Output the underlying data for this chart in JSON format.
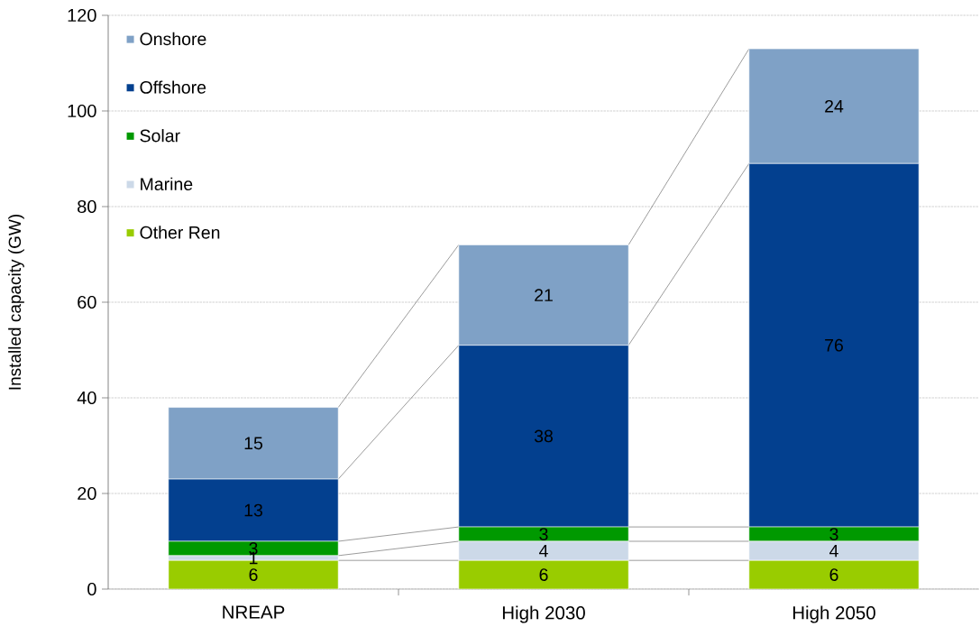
{
  "chart_data": {
    "type": "bar",
    "stacked": true,
    "ylabel": "Installed capacity (GW)",
    "categories": [
      "NREAP",
      "High 2030",
      "High 2050"
    ],
    "series": [
      {
        "name": "Other Ren",
        "color": "#99cc00",
        "values": [
          6,
          6,
          6
        ]
      },
      {
        "name": "Marine",
        "color": "#ccd9e8",
        "values": [
          1,
          4,
          4
        ]
      },
      {
        "name": "Solar",
        "color": "#009900",
        "values": [
          3,
          3,
          3
        ]
      },
      {
        "name": "Offshore",
        "color": "#03408f",
        "values": [
          13,
          38,
          76
        ]
      },
      {
        "name": "Onshore",
        "color": "#7fa1c6",
        "values": [
          15,
          21,
          24
        ]
      }
    ],
    "ylim": [
      0,
      120
    ],
    "yticks": [
      0,
      20,
      40,
      60,
      80,
      100,
      120
    ],
    "grid": "y",
    "legend": "top left",
    "data_labels": true
  }
}
